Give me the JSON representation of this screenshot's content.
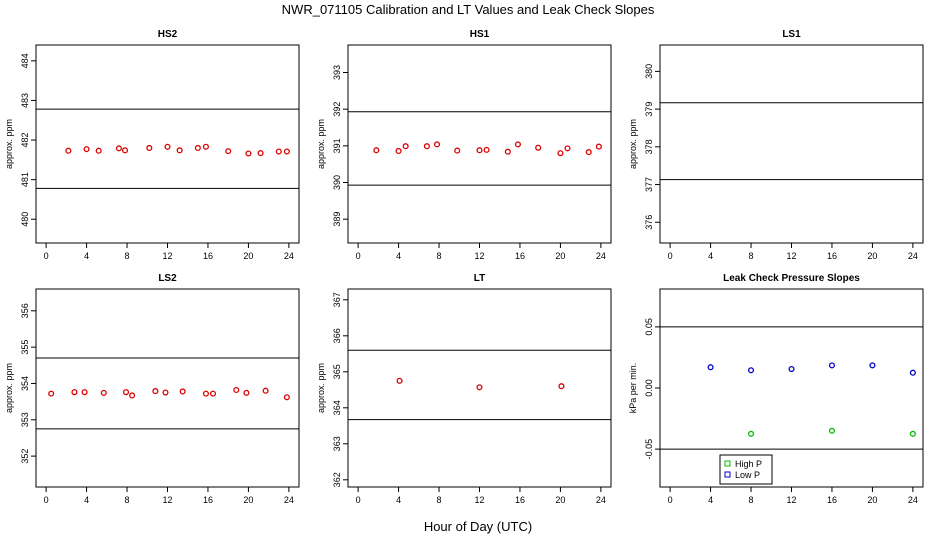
{
  "page": {
    "title": "NWR_071105  Calibration and LT Values and Leak Check Slopes",
    "xlabel": "Hour of Day (UTC)"
  },
  "chart_data": [
    {
      "type": "scatter",
      "title": "HS2",
      "ylabel": "approx. ppm",
      "xlim": [
        -1,
        25
      ],
      "ylim": [
        479.4,
        484.4
      ],
      "xticks": [
        0,
        4,
        8,
        12,
        16,
        20,
        24
      ],
      "yticks": [
        480,
        481,
        482,
        483,
        484
      ],
      "ref_lines": [
        482.78,
        480.78
      ],
      "series": [
        {
          "color": "#dd0000",
          "x": [
            2.2,
            4.0,
            5.2,
            7.2,
            7.8,
            10.2,
            12.0,
            13.2,
            15.0,
            15.8,
            18.0,
            20.0,
            21.2,
            23.0,
            23.8
          ],
          "y": [
            481.73,
            481.77,
            481.73,
            481.79,
            481.74,
            481.8,
            481.83,
            481.74,
            481.8,
            481.83,
            481.72,
            481.66,
            481.67,
            481.71,
            481.71
          ]
        }
      ]
    },
    {
      "type": "scatter",
      "title": "HS1",
      "ylabel": "approx. ppm",
      "xlim": [
        -1,
        25
      ],
      "ylim": [
        388.35,
        393.75
      ],
      "xticks": [
        0,
        4,
        8,
        12,
        16,
        20,
        24
      ],
      "yticks": [
        389,
        390,
        391,
        392,
        393
      ],
      "ytick_labels": [
        "389",
        "390",
        "391",
        "392",
        "393"
      ],
      "ref_lines": [
        391.93,
        389.93
      ],
      "series": [
        {
          "color": "#dd0000",
          "x": [
            1.8,
            4.0,
            4.7,
            6.8,
            7.8,
            9.8,
            12.0,
            12.7,
            14.8,
            15.8,
            17.8,
            20.0,
            20.7,
            22.8,
            23.8
          ],
          "y": [
            390.88,
            390.86,
            390.99,
            390.99,
            391.04,
            390.87,
            390.88,
            390.89,
            390.84,
            391.04,
            390.95,
            390.8,
            390.93,
            390.83,
            390.98
          ]
        }
      ]
    },
    {
      "type": "scatter",
      "title": "LS1",
      "ylabel": "approx. ppm",
      "xlim": [
        -1,
        25
      ],
      "ylim": [
        375.45,
        380.7
      ],
      "xticks": [
        0,
        4,
        8,
        12,
        16,
        20,
        24
      ],
      "yticks": [
        376,
        377,
        378,
        379,
        380
      ],
      "ref_lines": [
        379.17,
        377.13
      ],
      "series": []
    },
    {
      "type": "scatter",
      "title": "LS2",
      "ylabel": "approx. ppm",
      "xlim": [
        -1,
        25
      ],
      "ylim": [
        351.15,
        356.6
      ],
      "xticks": [
        0,
        4,
        8,
        12,
        16,
        20,
        24
      ],
      "yticks": [
        352,
        353,
        354,
        355,
        356
      ],
      "ytick_labels": [
        "352",
        "353",
        "354",
        "355",
        "356"
      ],
      "ref_lines": [
        354.7,
        352.75
      ],
      "series": [
        {
          "color": "#dd0000",
          "x": [
            0.5,
            2.8,
            3.8,
            5.7,
            7.9,
            8.5,
            10.8,
            11.8,
            13.5,
            15.8,
            16.5,
            18.8,
            19.8,
            21.7,
            23.8
          ],
          "y": [
            353.72,
            353.76,
            353.76,
            353.74,
            353.76,
            353.67,
            353.79,
            353.75,
            353.78,
            353.72,
            353.72,
            353.82,
            353.74,
            353.8,
            353.62
          ]
        }
      ]
    },
    {
      "type": "scatter",
      "title": "LT",
      "ylabel": "approx. ppm",
      "xlim": [
        -1,
        25
      ],
      "ylim": [
        361.8,
        367.3
      ],
      "xticks": [
        0,
        4,
        8,
        12,
        16,
        20,
        24
      ],
      "yticks": [
        362,
        363,
        364,
        365,
        366,
        367
      ],
      "ytick_labels": [
        "362",
        "363",
        "364",
        "365",
        "366",
        "367"
      ],
      "ref_lines": [
        365.6,
        363.67
      ],
      "series": [
        {
          "color": "#dd0000",
          "x": [
            4.1,
            12.0,
            20.1
          ],
          "y": [
            364.75,
            364.57,
            364.6
          ]
        }
      ]
    },
    {
      "type": "scatter",
      "title": "Leak Check Pressure Slopes",
      "ylabel": "kPa per min.",
      "xlim": [
        -1,
        25
      ],
      "ylim": [
        -0.081,
        0.081
      ],
      "xticks": [
        0,
        4,
        8,
        12,
        16,
        20,
        24
      ],
      "yticks": [
        -0.05,
        0.0,
        0.05
      ],
      "ytick_labels": [
        "-0.05",
        "0.00",
        "0.05"
      ],
      "ref_lines": [
        0.05,
        -0.05
      ],
      "legend": {
        "position": "bottom-left",
        "entries": [
          {
            "label": "High P",
            "color": "#00bb00"
          },
          {
            "label": "Low P",
            "color": "#0000cc"
          }
        ]
      },
      "series": [
        {
          "name": "High P",
          "color": "#00bb00",
          "x": [
            8.0,
            16.0,
            24.0
          ],
          "y": [
            -0.0375,
            -0.035,
            -0.0375
          ]
        },
        {
          "name": "Low P",
          "color": "#0000cc",
          "x": [
            4.0,
            8.0,
            12.0,
            16.0,
            20.0,
            24.0
          ],
          "y": [
            0.017,
            0.0145,
            0.0155,
            0.0185,
            0.0185,
            0.0125
          ]
        }
      ]
    }
  ]
}
